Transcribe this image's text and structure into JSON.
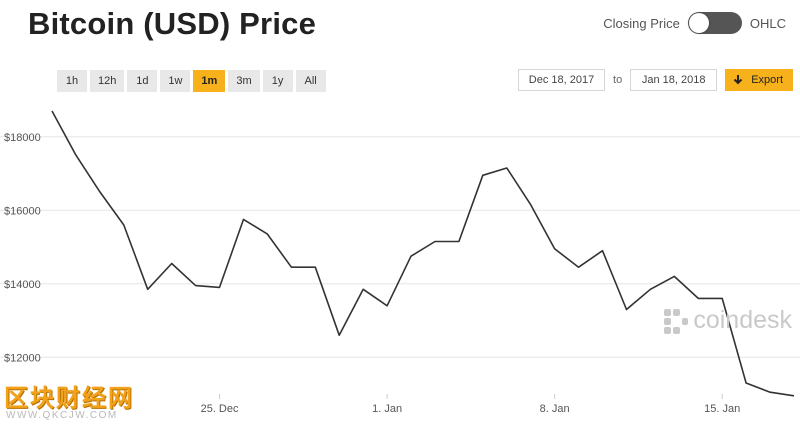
{
  "header": {
    "title": "Bitcoin (USD) Price",
    "toggle_left_label": "Closing Price",
    "toggle_right_label": "OHLC"
  },
  "range_buttons": [
    {
      "label": "1h",
      "active": false
    },
    {
      "label": "12h",
      "active": false
    },
    {
      "label": "1d",
      "active": false
    },
    {
      "label": "1w",
      "active": false
    },
    {
      "label": "1m",
      "active": true
    },
    {
      "label": "3m",
      "active": false
    },
    {
      "label": "1y",
      "active": false
    },
    {
      "label": "All",
      "active": false
    }
  ],
  "date_range": {
    "from": "Dec 18, 2017",
    "to_label": "to",
    "to": "Jan 18, 2018",
    "export_label": "Export"
  },
  "watermark": {
    "text": "coindesk",
    "icon": "coindesk-logo-icon"
  },
  "site_logo": {
    "text": "区块财经网",
    "url": "WWW.QKCJW.COM"
  },
  "colors": {
    "accent": "#f7b21b",
    "line": "#333333",
    "grid": "#e5e5e5"
  },
  "chart_data": {
    "type": "line",
    "title": "Bitcoin (USD) Price",
    "xlabel": "",
    "ylabel": "",
    "x_start": "2017-12-18",
    "x_end": "2018-01-18",
    "xlim": [
      "2017-12-18",
      "2018-01-18"
    ],
    "ylim": [
      11000,
      19000
    ],
    "y_ticks": [
      12000,
      14000,
      16000,
      18000
    ],
    "y_tick_labels": [
      "$12000",
      "$14000",
      "$16000",
      "$18000"
    ],
    "x_ticks": [
      "2017-12-25",
      "2018-01-01",
      "2018-01-08",
      "2018-01-15"
    ],
    "x_tick_labels": [
      "25. Dec",
      "1. Jan",
      "8. Jan",
      "15. Jan"
    ],
    "grid": true,
    "legend": false,
    "x": [
      "2017-12-18",
      "2017-12-19",
      "2017-12-20",
      "2017-12-21",
      "2017-12-22",
      "2017-12-23",
      "2017-12-24",
      "2017-12-25",
      "2017-12-26",
      "2017-12-27",
      "2017-12-28",
      "2017-12-29",
      "2017-12-30",
      "2017-12-31",
      "2018-01-01",
      "2018-01-02",
      "2018-01-03",
      "2018-01-04",
      "2018-01-05",
      "2018-01-06",
      "2018-01-07",
      "2018-01-08",
      "2018-01-09",
      "2018-01-10",
      "2018-01-11",
      "2018-01-12",
      "2018-01-13",
      "2018-01-14",
      "2018-01-15",
      "2018-01-16",
      "2018-01-17",
      "2018-01-18"
    ],
    "values": [
      18700,
      17500,
      16500,
      15600,
      13850,
      14550,
      13950,
      13900,
      15750,
      15350,
      14450,
      14450,
      12600,
      13850,
      13400,
      14750,
      15150,
      15150,
      16950,
      17150,
      16150,
      14950,
      14450,
      14900,
      13300,
      13850,
      14200,
      13600,
      13600,
      11300,
      11050,
      10950
    ]
  }
}
